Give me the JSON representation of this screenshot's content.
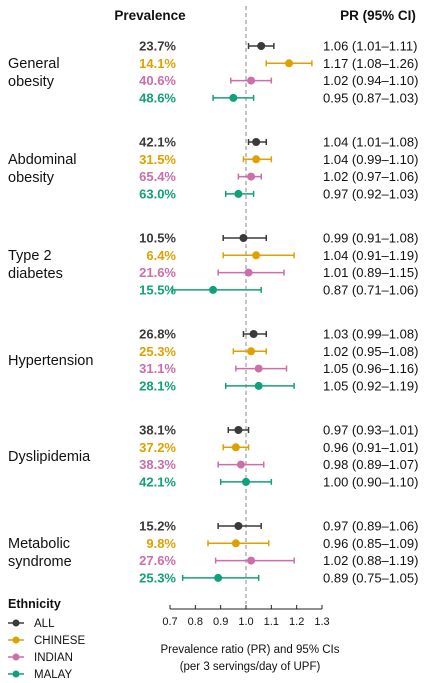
{
  "chart_data": {
    "type": "forest",
    "headers": {
      "prevalence": "Prevalence",
      "pr": "PR (95% CI)"
    },
    "xlabel": [
      "Prevalence ratio (PR) and 95% CIs",
      "(per 3 servings/day of UPF)"
    ],
    "xlim": [
      0.7,
      1.3
    ],
    "xticks": [
      0.7,
      0.8,
      0.9,
      1.0,
      1.1,
      1.2,
      1.3
    ],
    "tick_labels": [
      "0.7",
      "0.8",
      "0.9",
      "1.0",
      "1.1",
      "1.2",
      "1.3"
    ],
    "reference_line": 1.0,
    "legend": {
      "title": "Ethnicity",
      "placement": "bottom-left",
      "entries": [
        "ALL",
        "CHINESE",
        "INDIAN",
        "MALAY"
      ]
    },
    "series_colors": {
      "ALL": "#3a3a3a",
      "CHINESE": "#e0a100",
      "INDIAN": "#cc6ea8",
      "MALAY": "#12a07a"
    },
    "groups": [
      {
        "outcome": [
          "General",
          "obesity"
        ],
        "rows": [
          {
            "ethnicity": "ALL",
            "prevalence": "23.7%",
            "pr": 1.06,
            "lo": 1.01,
            "hi": 1.11,
            "label": "1.06 (1.01–1.11)"
          },
          {
            "ethnicity": "CHINESE",
            "prevalence": "14.1%",
            "pr": 1.17,
            "lo": 1.08,
            "hi": 1.26,
            "label": "1.17 (1.08–1.26)"
          },
          {
            "ethnicity": "INDIAN",
            "prevalence": "40.6%",
            "pr": 1.02,
            "lo": 0.94,
            "hi": 1.1,
            "label": "1.02 (0.94–1.10)"
          },
          {
            "ethnicity": "MALAY",
            "prevalence": "48.6%",
            "pr": 0.95,
            "lo": 0.87,
            "hi": 1.03,
            "label": "0.95 (0.87–1.03)"
          }
        ]
      },
      {
        "outcome": [
          "Abdominal",
          "obesity"
        ],
        "rows": [
          {
            "ethnicity": "ALL",
            "prevalence": "42.1%",
            "pr": 1.04,
            "lo": 1.01,
            "hi": 1.08,
            "label": "1.04 (1.01–1.08)"
          },
          {
            "ethnicity": "CHINESE",
            "prevalence": "31.5%",
            "pr": 1.04,
            "lo": 0.99,
            "hi": 1.1,
            "label": "1.04 (0.99–1.10)"
          },
          {
            "ethnicity": "INDIAN",
            "prevalence": "65.4%",
            "pr": 1.02,
            "lo": 0.97,
            "hi": 1.06,
            "label": "1.02 (0.97–1.06)"
          },
          {
            "ethnicity": "MALAY",
            "prevalence": "63.0%",
            "pr": 0.97,
            "lo": 0.92,
            "hi": 1.03,
            "label": "0.97 (0.92–1.03)"
          }
        ]
      },
      {
        "outcome": [
          "Type 2",
          "diabetes"
        ],
        "rows": [
          {
            "ethnicity": "ALL",
            "prevalence": "10.5%",
            "pr": 0.99,
            "lo": 0.91,
            "hi": 1.08,
            "label": "0.99 (0.91–1.08)"
          },
          {
            "ethnicity": "CHINESE",
            "prevalence": "6.4%",
            "pr": 1.04,
            "lo": 0.91,
            "hi": 1.19,
            "label": "1.04 (0.91–1.19)"
          },
          {
            "ethnicity": "INDIAN",
            "prevalence": "21.6%",
            "pr": 1.01,
            "lo": 0.89,
            "hi": 1.15,
            "label": "1.01 (0.89–1.15)"
          },
          {
            "ethnicity": "MALAY",
            "prevalence": "15.5%",
            "pr": 0.87,
            "lo": 0.71,
            "hi": 1.06,
            "label": "0.87 (0.71–1.06)"
          }
        ]
      },
      {
        "outcome": [
          "Hypertension"
        ],
        "rows": [
          {
            "ethnicity": "ALL",
            "prevalence": "26.8%",
            "pr": 1.03,
            "lo": 0.99,
            "hi": 1.08,
            "label": "1.03 (0.99–1.08)"
          },
          {
            "ethnicity": "CHINESE",
            "prevalence": "25.3%",
            "pr": 1.02,
            "lo": 0.95,
            "hi": 1.08,
            "label": "1.02 (0.95–1.08)"
          },
          {
            "ethnicity": "INDIAN",
            "prevalence": "31.1%",
            "pr": 1.05,
            "lo": 0.96,
            "hi": 1.16,
            "label": "1.05 (0.96–1.16)"
          },
          {
            "ethnicity": "MALAY",
            "prevalence": "28.1%",
            "pr": 1.05,
            "lo": 0.92,
            "hi": 1.19,
            "label": "1.05 (0.92–1.19)"
          }
        ]
      },
      {
        "outcome": [
          "Dyslipidemia"
        ],
        "rows": [
          {
            "ethnicity": "ALL",
            "prevalence": "38.1%",
            "pr": 0.97,
            "lo": 0.93,
            "hi": 1.01,
            "label": "0.97 (0.93–1.01)"
          },
          {
            "ethnicity": "CHINESE",
            "prevalence": "37.2%",
            "pr": 0.96,
            "lo": 0.91,
            "hi": 1.01,
            "label": "0.96 (0.91–1.01)"
          },
          {
            "ethnicity": "INDIAN",
            "prevalence": "38.3%",
            "pr": 0.98,
            "lo": 0.89,
            "hi": 1.07,
            "label": "0.98 (0.89–1.07)"
          },
          {
            "ethnicity": "MALAY",
            "prevalence": "42.1%",
            "pr": 1.0,
            "lo": 0.9,
            "hi": 1.1,
            "label": "1.00 (0.90–1.10)"
          }
        ]
      },
      {
        "outcome": [
          "Metabolic",
          "syndrome"
        ],
        "rows": [
          {
            "ethnicity": "ALL",
            "prevalence": "15.2%",
            "pr": 0.97,
            "lo": 0.89,
            "hi": 1.06,
            "label": "0.97 (0.89–1.06)"
          },
          {
            "ethnicity": "CHINESE",
            "prevalence": "9.8%",
            "pr": 0.96,
            "lo": 0.85,
            "hi": 1.09,
            "label": "0.96 (0.85–1.09)"
          },
          {
            "ethnicity": "INDIAN",
            "prevalence": "27.6%",
            "pr": 1.02,
            "lo": 0.88,
            "hi": 1.19,
            "label": "1.02 (0.88–1.19)"
          },
          {
            "ethnicity": "MALAY",
            "prevalence": "25.3%",
            "pr": 0.89,
            "lo": 0.75,
            "hi": 1.05,
            "label": "0.89 (0.75–1.05)"
          }
        ]
      }
    ]
  }
}
